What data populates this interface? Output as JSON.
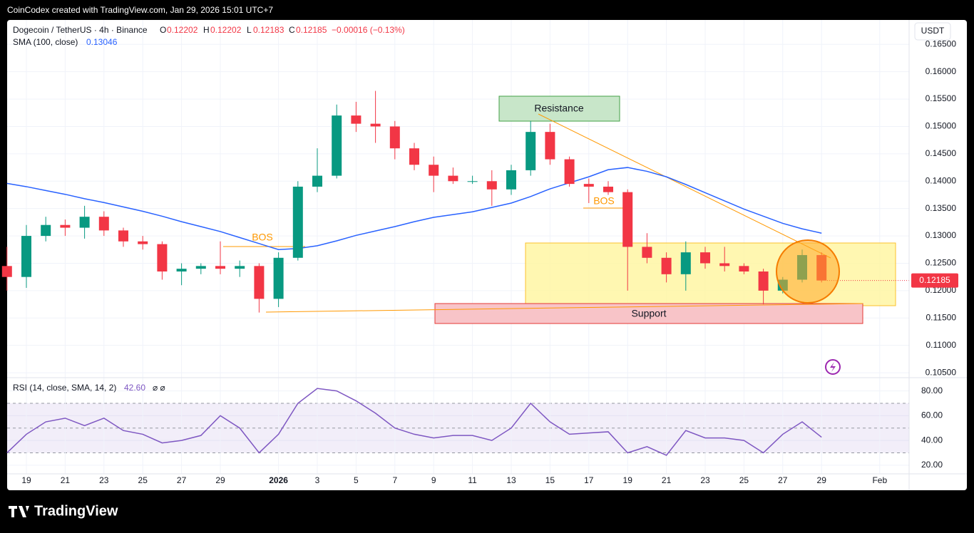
{
  "header": {
    "credit": "CoinCodex created with TradingView.com, Jan 29, 2026 15:01 UTC+7",
    "logo": "TradingView",
    "currency": "USDT"
  },
  "legend": {
    "symbol": "Dogecoin / TetherUS · 4h · Binance",
    "open_label": "O",
    "open": "0.12202",
    "high_label": "H",
    "high": "0.12202",
    "low_label": "L",
    "low": "0.12183",
    "close_label": "C",
    "close": "0.12185",
    "change": "−0.00016 (−0.13%)"
  },
  "annotations": {
    "resistance": "Resistance",
    "support": "Support",
    "bos_1": "BOS",
    "bos_2": "BOS"
  },
  "chart_data": {
    "type": "candlestick",
    "categories": [
      null,
      "19",
      null,
      "21",
      null,
      "23",
      null,
      "25",
      null,
      "27",
      null,
      "29",
      null,
      null,
      "2026",
      null,
      "3",
      null,
      "5",
      null,
      "7",
      null,
      "9",
      null,
      "11",
      null,
      "13",
      null,
      "15",
      null,
      "17",
      null,
      "19",
      null,
      "21",
      null,
      "23",
      null,
      "25",
      null,
      "27",
      null,
      "29",
      null,
      null,
      "Feb"
    ],
    "open": [
      0.1245,
      0.1225,
      0.13,
      0.132,
      0.1315,
      0.1335,
      0.131,
      0.129,
      0.1285,
      0.1235,
      0.124,
      0.1245,
      0.124,
      0.1245,
      0.1185,
      0.126,
      0.139,
      0.141,
      0.152,
      0.1505,
      0.15,
      0.146,
      0.143,
      0.141,
      0.14,
      0.14,
      0.1385,
      0.142,
      0.149,
      0.144,
      0.1395,
      0.139,
      0.138,
      0.128,
      0.126,
      0.123,
      0.127,
      0.125,
      0.1245,
      0.1235,
      0.12,
      0.122,
      0.1265,
      null,
      null,
      null
    ],
    "high": [
      0.128,
      0.132,
      0.1335,
      0.133,
      0.1355,
      0.1345,
      0.1315,
      0.13,
      0.129,
      0.125,
      0.125,
      0.129,
      0.1255,
      0.125,
      0.127,
      0.14,
      0.146,
      0.154,
      0.1545,
      0.1565,
      0.151,
      0.147,
      0.1445,
      0.1425,
      0.141,
      0.142,
      0.143,
      0.151,
      0.1505,
      0.1445,
      0.1405,
      0.14,
      0.1385,
      0.1305,
      0.127,
      0.129,
      0.128,
      0.128,
      0.125,
      0.124,
      0.1225,
      0.1275,
      0.127,
      null,
      null,
      null
    ],
    "low": [
      0.12,
      0.1205,
      0.129,
      0.13,
      0.1295,
      0.13,
      0.128,
      0.1275,
      0.122,
      0.121,
      0.123,
      0.123,
      0.1225,
      0.116,
      0.117,
      0.1255,
      0.138,
      0.1405,
      0.149,
      0.147,
      0.144,
      0.142,
      0.138,
      0.1395,
      0.1395,
      0.1355,
      0.1375,
      0.141,
      0.143,
      0.139,
      0.136,
      0.1375,
      0.12,
      0.125,
      0.1215,
      0.12,
      0.124,
      0.1235,
      0.123,
      0.1175,
      0.1195,
      0.1215,
      0.1215,
      null,
      null,
      null
    ],
    "close": [
      0.1225,
      0.13,
      0.132,
      0.1315,
      0.1335,
      0.131,
      0.129,
      0.1285,
      0.1235,
      0.124,
      0.1245,
      0.124,
      0.1245,
      0.1185,
      0.126,
      0.139,
      0.141,
      0.152,
      0.1505,
      0.15,
      0.146,
      0.143,
      0.141,
      0.14,
      0.14,
      0.1385,
      0.142,
      0.149,
      0.144,
      0.1395,
      0.139,
      0.138,
      0.128,
      0.126,
      0.123,
      0.127,
      0.125,
      0.1245,
      0.1235,
      0.12,
      0.122,
      0.1265,
      0.12185,
      null,
      null,
      null
    ],
    "up_color": "#089981",
    "down_color": "#f23645",
    "ylim": [
      0.1041,
      0.1692
    ],
    "yticks": [
      {
        "value": 0.105,
        "label": "0.10500"
      },
      {
        "value": 0.11,
        "label": "0.11000"
      },
      {
        "value": 0.115,
        "label": "0.11500"
      },
      {
        "value": 0.12,
        "label": "0.12000"
      },
      {
        "value": 0.125,
        "label": "0.12500"
      },
      {
        "value": 0.13,
        "label": "0.13000"
      },
      {
        "value": 0.135,
        "label": "0.13500"
      },
      {
        "value": 0.14,
        "label": "0.14000"
      },
      {
        "value": 0.145,
        "label": "0.14500"
      },
      {
        "value": 0.15,
        "label": "0.15000"
      },
      {
        "value": 0.155,
        "label": "0.15500"
      },
      {
        "value": 0.16,
        "label": "0.16000"
      },
      {
        "value": 0.165,
        "label": "0.16500"
      }
    ],
    "grid": true,
    "sma": {
      "name": "SMA (100, close)",
      "value_label": "0.13046",
      "color": "#2962ff",
      "values": [
        0.1396,
        0.139,
        0.1383,
        0.1376,
        0.1368,
        0.1361,
        0.1353,
        0.1345,
        0.1336,
        0.1326,
        0.1317,
        0.1308,
        0.1297,
        0.1286,
        0.1275,
        0.1277,
        0.1282,
        0.1291,
        0.1301,
        0.1309,
        0.1317,
        0.1326,
        0.1334,
        0.1339,
        0.1344,
        0.1352,
        0.136,
        0.1372,
        0.1386,
        0.1397,
        0.1408,
        0.1421,
        0.1425,
        0.1418,
        0.1408,
        0.1394,
        0.1379,
        0.1364,
        0.1349,
        0.1336,
        0.1323,
        0.1313,
        0.1305,
        null,
        null,
        null
      ]
    },
    "rsi": {
      "name": "RSI (14, close, SMA, 14, 2)",
      "value_label": "42.60",
      "extra": "⌀ ⌀",
      "color": "#7e57c2",
      "values": [
        30,
        45,
        55,
        58,
        52,
        58,
        48,
        45,
        38,
        40,
        44,
        60,
        50,
        30,
        45,
        70,
        82,
        80,
        72,
        62,
        50,
        45,
        42,
        44,
        44,
        40,
        50,
        70,
        55,
        45,
        46,
        47,
        30,
        35,
        28,
        48,
        42,
        42,
        40,
        30,
        45,
        55,
        42.6,
        null,
        null,
        null
      ],
      "ylim": [
        13,
        89
      ],
      "yticks": [
        {
          "value": 20,
          "label": "20.00"
        },
        {
          "value": 40,
          "label": "40.00"
        },
        {
          "value": 60,
          "label": "60.00"
        },
        {
          "value": 80,
          "label": "80.00"
        }
      ],
      "bands": [
        30,
        50,
        70
      ]
    }
  }
}
